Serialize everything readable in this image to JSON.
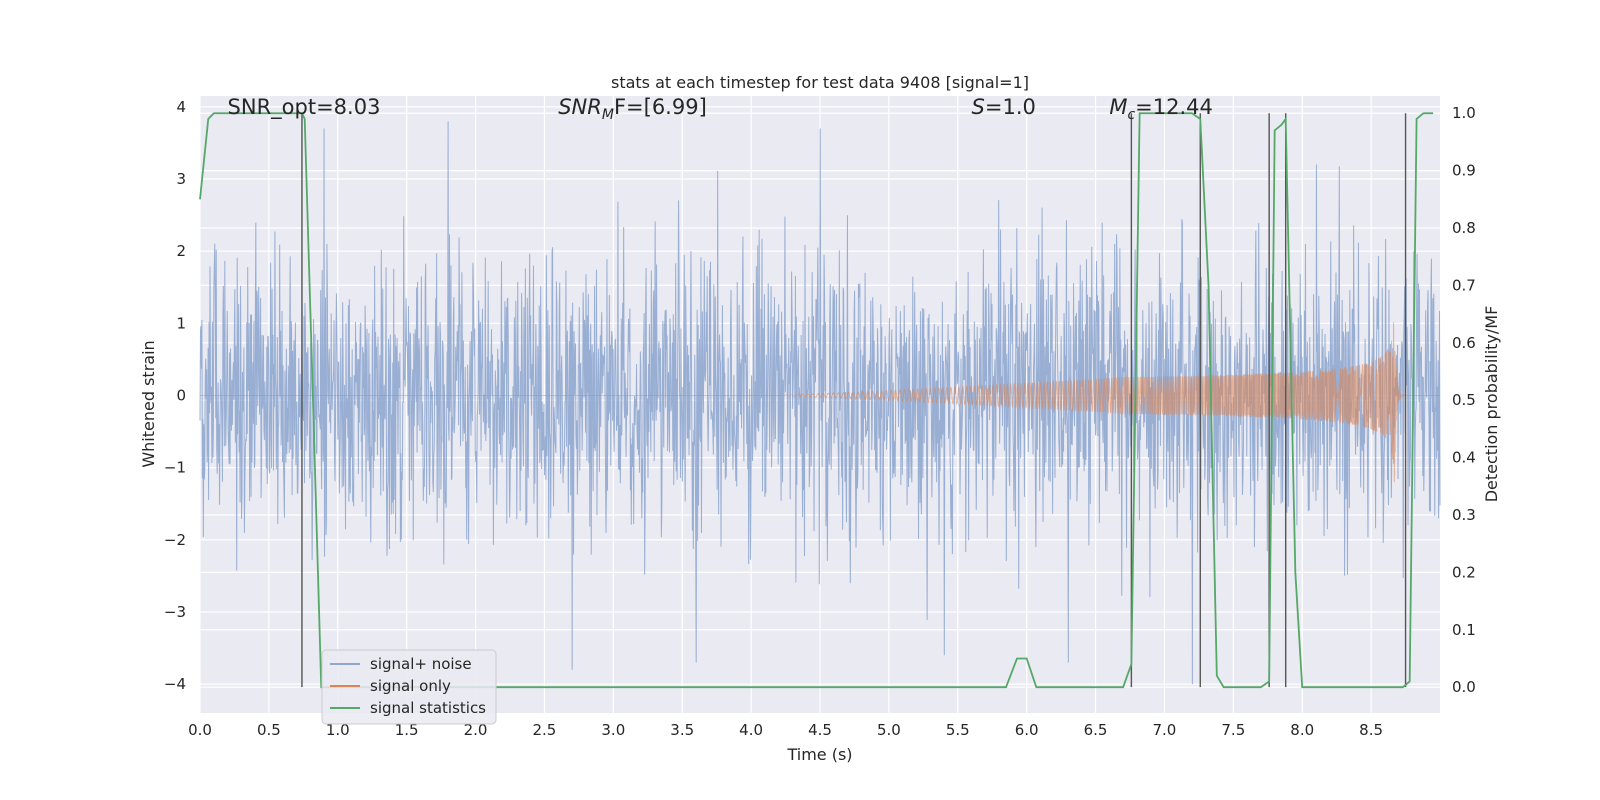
{
  "chart_data": {
    "type": "line",
    "title": "stats at each timestep for test data 9408 [signal=1]",
    "xlabel": "Time (s)",
    "ylabel": "Whitened strain",
    "y2label": "Detection probability/MF",
    "xlim": [
      0.0,
      9.0
    ],
    "ylim": [
      -4.4,
      4.15
    ],
    "y2lim": [
      -0.045,
      1.03
    ],
    "grid": true,
    "legend_position": "lower-left",
    "xticks": [
      "0.0",
      "0.5",
      "1.0",
      "1.5",
      "2.0",
      "2.5",
      "3.0",
      "3.5",
      "4.0",
      "4.5",
      "5.0",
      "5.5",
      "6.0",
      "6.5",
      "7.0",
      "7.5",
      "8.0",
      "8.5"
    ],
    "xtick_values": [
      0.0,
      0.5,
      1.0,
      1.5,
      2.0,
      2.5,
      3.0,
      3.5,
      4.0,
      4.5,
      5.0,
      5.5,
      6.0,
      6.5,
      7.0,
      7.5,
      8.0,
      8.5
    ],
    "yticks": [
      "−4",
      "−3",
      "−2",
      "−1",
      "0",
      "1",
      "2",
      "3",
      "4"
    ],
    "ytick_values": [
      -4,
      -3,
      -2,
      -1,
      0,
      1,
      2,
      3,
      4
    ],
    "y2ticks": [
      "0.0",
      "0.1",
      "0.2",
      "0.3",
      "0.4",
      "0.5",
      "0.6",
      "0.7",
      "0.8",
      "0.9",
      "1.0"
    ],
    "y2tick_values": [
      0.0,
      0.1,
      0.2,
      0.3,
      0.4,
      0.5,
      0.6,
      0.7,
      0.8,
      0.9,
      1.0
    ],
    "annotations": {
      "snr_opt": {
        "text": "SNR_opt=8.03",
        "x": 0.2,
        "y": 3.9
      },
      "snr_mf": {
        "base": "SNR",
        "sub": "M",
        "rest": "F=[6.99]",
        "x": 2.6,
        "y": 3.9
      },
      "s_stat": {
        "var": "S",
        "rest": "=1.0",
        "x": 5.6,
        "y": 3.9
      },
      "mc": {
        "base": "M",
        "sub": "c",
        "rest": "=12.44",
        "x": 6.6,
        "y": 3.9
      }
    },
    "series": [
      {
        "name": "signal+ noise",
        "color": "#8fa7cf",
        "axis": "left",
        "kind": "noise",
        "envelope_std": 0.95,
        "peak_values": [
          3.7,
          3.8,
          -3.8,
          -3.7,
          3.7,
          -3.6,
          -3.7,
          -4.0,
          3.2
        ]
      },
      {
        "name": "signal only",
        "color": "#dd8452",
        "axis": "left",
        "kind": "chirp",
        "chirp_start": 4.2,
        "chirp_peak_time": 8.67,
        "chirp_end": 8.75,
        "peak_amplitude": 1.2
      },
      {
        "name": "signal statistics",
        "color": "#55a868",
        "axis": "right",
        "x": [
          0.0,
          0.06,
          0.1,
          0.2,
          0.5,
          0.74,
          0.76,
          0.82,
          0.88,
          1.0,
          2.0,
          3.0,
          4.0,
          5.0,
          5.85,
          5.93,
          6.0,
          6.07,
          6.5,
          6.7,
          6.76,
          6.82,
          7.2,
          7.26,
          7.32,
          7.38,
          7.43,
          7.5,
          7.7,
          7.76,
          7.8,
          7.85,
          7.88,
          7.95,
          8.0,
          8.5,
          8.73,
          8.78,
          8.83,
          8.88,
          8.95
        ],
        "y": [
          0.85,
          0.99,
          1.0,
          1.0,
          1.0,
          1.0,
          0.99,
          0.5,
          0.0,
          0.0,
          0.0,
          0.0,
          0.0,
          0.0,
          0.0,
          0.05,
          0.05,
          0.0,
          0.0,
          0.0,
          0.04,
          1.0,
          1.0,
          0.99,
          0.7,
          0.02,
          0.0,
          0.0,
          0.0,
          0.01,
          0.97,
          0.98,
          0.99,
          0.2,
          0.0,
          0.0,
          0.0,
          0.01,
          0.99,
          1.0,
          1.0
        ]
      }
    ],
    "vertical_lines": [
      {
        "x": 0.74,
        "color": "#555555"
      },
      {
        "x": 6.76,
        "color": "#555555"
      },
      {
        "x": 7.26,
        "color": "#555555"
      },
      {
        "x": 7.76,
        "color": "#555555"
      },
      {
        "x": 7.88,
        "color": "#555555"
      },
      {
        "x": 8.75,
        "color": "#555555"
      }
    ],
    "background_color": "#eaeaf2",
    "grid_color": "#ffffff"
  }
}
